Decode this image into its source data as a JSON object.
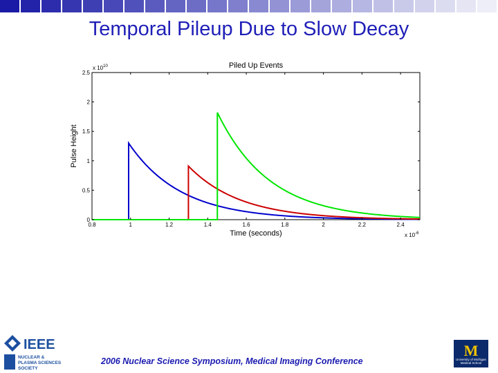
{
  "slide_title": "Temporal Pileup Due to Slow Decay",
  "footer": "2006 Nuclear Science Symposium, Medical Imaging Conference",
  "logos": {
    "ieee": "IEEE",
    "npss_line1": "NUCLEAR &",
    "npss_line2": "PLASMA SCIENCES",
    "npss_line3": "SOCIETY",
    "umich_letter": "M",
    "umich_line1": "University of Michigan",
    "umich_line2": "Medical School"
  },
  "colors": {
    "title": "#1f1fb8",
    "bar_dark": "#1a1aa6",
    "bar_light": "#e6e6f5"
  },
  "chart_data": {
    "type": "line",
    "title": "Piled Up Events",
    "xlabel": "Time (seconds)",
    "ylabel": "Pulse Height",
    "x_multiplier": "x 10^-6",
    "y_multiplier": "x 10^10",
    "xlim": [
      0.8,
      2.5
    ],
    "ylim": [
      0,
      2.5
    ],
    "x_ticks": [
      "0.8",
      "1",
      "1.2",
      "1.4",
      "1.6",
      "1.8",
      "2",
      "2.2",
      "2.4"
    ],
    "y_ticks": [
      "0",
      "0.5",
      "1",
      "1.5",
      "2",
      "2.5"
    ],
    "grid": false,
    "series": [
      {
        "color": "#0000cc",
        "onset": 0.99,
        "peak": 1.3,
        "decay_constant": 0.27
      },
      {
        "color": "#cc0000",
        "onset": 1.3,
        "peak": 0.91,
        "decay_constant": 0.27
      },
      {
        "color": "#00e600",
        "onset": 1.45,
        "peak": 1.82,
        "decay_constant": 0.27
      }
    ]
  }
}
